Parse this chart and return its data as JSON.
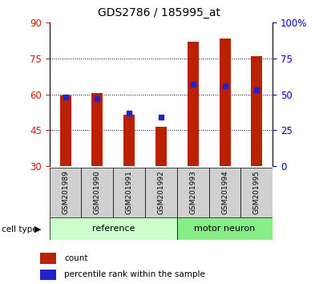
{
  "title": "GDS2786 / 185995_at",
  "samples": [
    "GSM201989",
    "GSM201990",
    "GSM201991",
    "GSM201992",
    "GSM201993",
    "GSM201994",
    "GSM201995"
  ],
  "groups": [
    "reference",
    "reference",
    "reference",
    "reference",
    "motor neuron",
    "motor neuron",
    "motor neuron"
  ],
  "count_values": [
    59.5,
    60.5,
    51.5,
    46.5,
    82.0,
    83.5,
    76.0
  ],
  "percentile_values": [
    48,
    47,
    37,
    34,
    57,
    56,
    53
  ],
  "y_left_ticks": [
    30,
    45,
    60,
    75,
    90
  ],
  "y_right_ticks": [
    0,
    25,
    50,
    75,
    100
  ],
  "y_left_label_color": "#cc2200",
  "y_right_label_color": "#0000cc",
  "bar_color": "#bb2000",
  "percentile_color": "#2222cc",
  "bg_color_reference": "#ccffcc",
  "bg_color_motor": "#88ee88",
  "label_area_color": "#d0d0d0",
  "left_ylim": [
    30,
    90
  ],
  "right_ylim": [
    0,
    100
  ],
  "bar_width": 0.35
}
